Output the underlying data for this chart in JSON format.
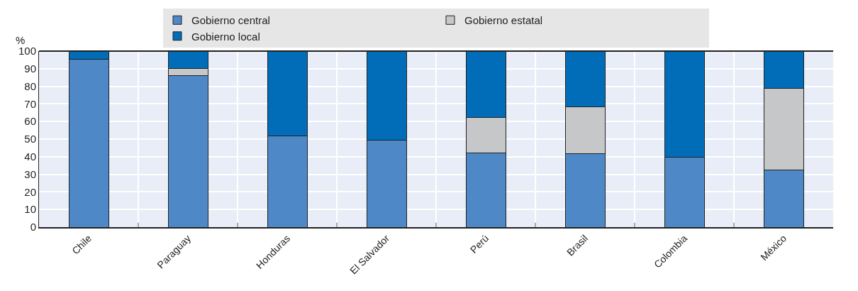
{
  "chart_data": {
    "type": "bar",
    "stacked": true,
    "ylabel": "%",
    "categories": [
      "Chile",
      "Paraguay",
      "Honduras",
      "El Salvador",
      "Perú",
      "Brasil",
      "Colombia",
      "México"
    ],
    "series": [
      {
        "name": "Gobierno central",
        "color": "#4e88c7",
        "values": [
          95.2,
          86,
          52,
          49.5,
          42,
          41.7,
          39.7,
          32.5
        ]
      },
      {
        "name": "Gobierno estatal",
        "color": "#c6c7c9",
        "values": [
          0,
          4.3,
          0,
          0,
          20.5,
          26.6,
          0,
          46.5
        ]
      },
      {
        "name": "Gobierno local",
        "color": "#016db8",
        "values": [
          4.8,
          9.7,
          48,
          50.5,
          37.5,
          31.7,
          60.3,
          21
        ]
      }
    ],
    "ylim": [
      0,
      100
    ],
    "yticks": [
      0,
      10,
      20,
      30,
      40,
      50,
      60,
      70,
      80,
      90,
      100
    ],
    "grid": true,
    "legend": "top"
  }
}
